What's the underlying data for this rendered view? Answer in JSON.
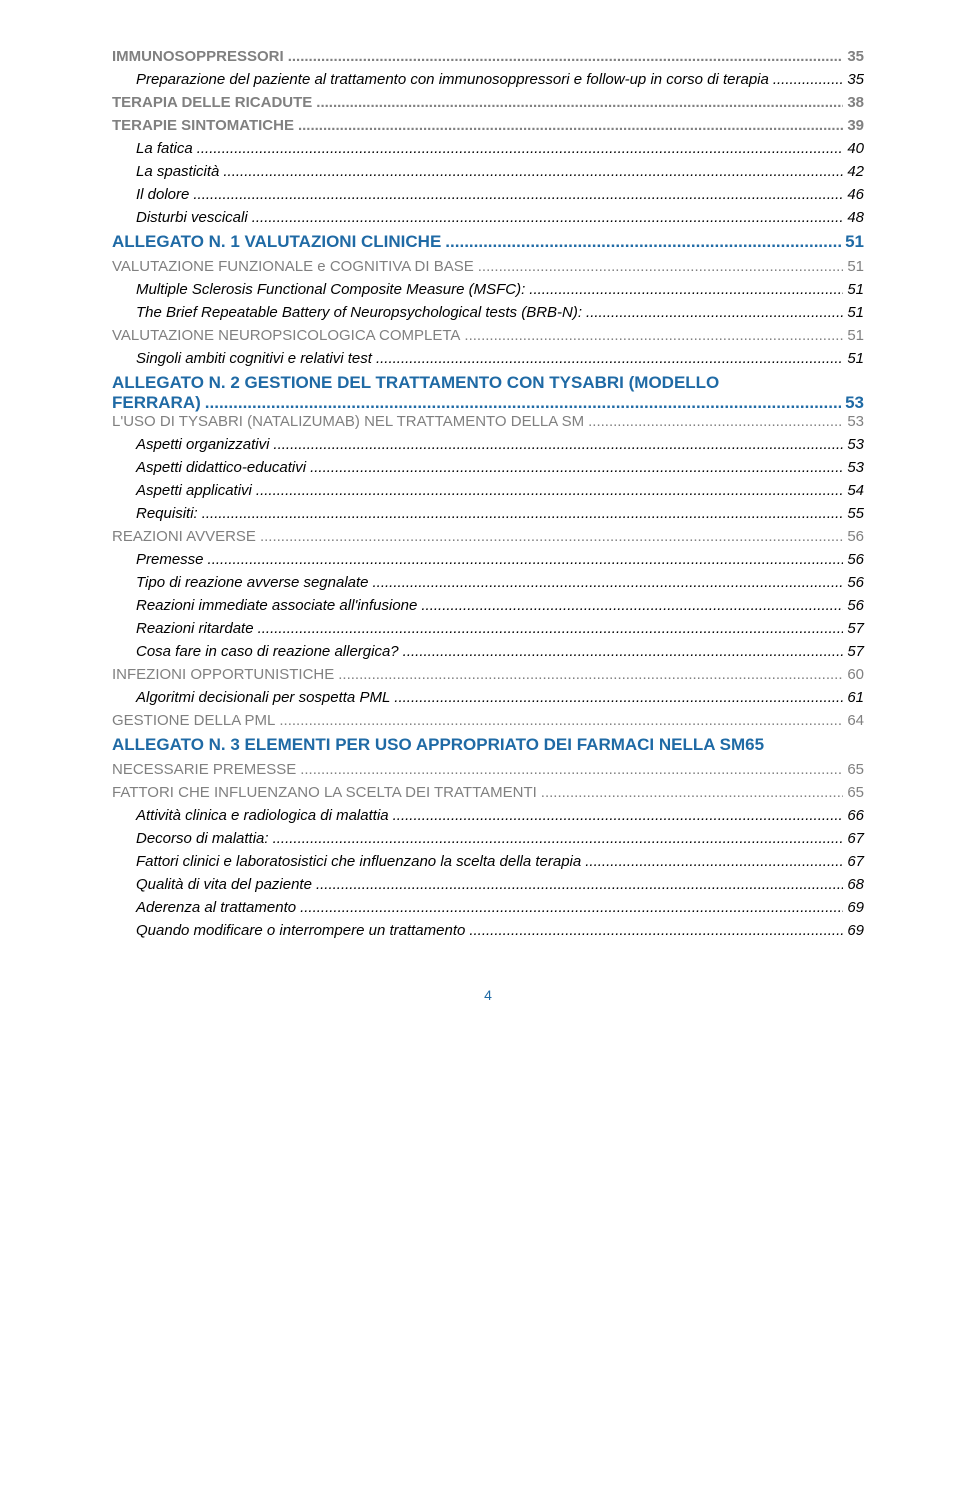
{
  "entries": [
    {
      "cls": "lvl-section-grey",
      "label": "IMMUNOSOPPRESSORI",
      "page": "35"
    },
    {
      "cls": "lvl-item-italic",
      "label": "Preparazione del paziente al trattamento con immunosoppressori e follow-up in corso di terapia",
      "page": "35"
    },
    {
      "cls": "lvl-section-grey",
      "label": "TERAPIA DELLE RICADUTE",
      "page": "38"
    },
    {
      "cls": "lvl-section-grey",
      "label": "TERAPIE SINTOMATICHE",
      "page": "39"
    },
    {
      "cls": "lvl-item-italic",
      "label": "La fatica",
      "page": "40"
    },
    {
      "cls": "lvl-item-italic",
      "label": "La spasticità",
      "page": "42"
    },
    {
      "cls": "lvl-item-italic",
      "label": "Il dolore",
      "page": "46"
    },
    {
      "cls": "lvl-item-italic",
      "label": "Disturbi vescicali",
      "page": "48"
    },
    {
      "cls": "lvl-heading-blue",
      "label": "ALLEGATO N. 1 VALUTAZIONI CLINICHE",
      "page": "51"
    },
    {
      "cls": "lvl-sub-grey",
      "label": "VALUTAZIONE FUNZIONALE e COGNITIVA DI BASE",
      "page": "51"
    },
    {
      "cls": "lvl-item-italic",
      "label": "Multiple Sclerosis Functional Composite Measure (MSFC):",
      "page": "51"
    },
    {
      "cls": "lvl-item-italic",
      "label": "The Brief Repeatable Battery of Neuropsychological tests (BRB-N):",
      "page": "51"
    },
    {
      "cls": "lvl-sub-grey",
      "label": "VALUTAZIONE NEUROPSICOLOGICA COMPLETA",
      "page": "51"
    },
    {
      "cls": "lvl-item-italic",
      "label": "Singoli ambiti cognitivi e relativi test",
      "page": "51"
    },
    {
      "cls": "lvl-heading-blue-wrap",
      "two_line": true,
      "label_line1": "ALLEGATO N. 2 GESTIONE DEL TRATTAMENTO CON TYSABRI (MODELLO",
      "label_line2": "FERRARA)",
      "page": "53"
    },
    {
      "cls": "lvl-sub-grey",
      "label": "L'USO DI TYSABRI (NATALIZUMAB) NEL TRATTAMENTO DELLA SM",
      "page": "53"
    },
    {
      "cls": "lvl-item-italic",
      "label": "Aspetti organizzativi",
      "page": "53"
    },
    {
      "cls": "lvl-item-italic",
      "label": "Aspetti didattico-educativi",
      "page": "53"
    },
    {
      "cls": "lvl-item-italic",
      "label": "Aspetti applicativi",
      "page": "54"
    },
    {
      "cls": "lvl-item-italic",
      "label": "Requisiti:",
      "page": "55"
    },
    {
      "cls": "lvl-sub-grey",
      "label": "REAZIONI AVVERSE",
      "page": "56"
    },
    {
      "cls": "lvl-item-italic",
      "label": "Premesse",
      "page": "56"
    },
    {
      "cls": "lvl-item-italic",
      "label": "Tipo di reazione avverse segnalate",
      "page": "56"
    },
    {
      "cls": "lvl-item-italic",
      "label": "Reazioni immediate associate all'infusione",
      "page": "56"
    },
    {
      "cls": "lvl-item-italic",
      "label": "Reazioni ritardate",
      "page": "57"
    },
    {
      "cls": "lvl-item-italic",
      "label": "Cosa fare in caso di reazione allergica?",
      "page": "57"
    },
    {
      "cls": "lvl-sub-grey",
      "label": "INFEZIONI OPPORTUNISTICHE",
      "page": "60"
    },
    {
      "cls": "lvl-item-italic",
      "label": "Algoritmi decisionali per sospetta PML",
      "page": "61"
    },
    {
      "cls": "lvl-sub-grey",
      "label": "GESTIONE DELLA PML",
      "page": "64"
    },
    {
      "cls": "lvl-heading-blue",
      "label": "ALLEGATO N. 3 ELEMENTI PER USO APPROPRIATO DEI FARMACI NELLA SM",
      "page": "65",
      "nodots": true
    },
    {
      "cls": "lvl-sub-grey",
      "label": "NECESSARIE PREMESSE",
      "page": "65"
    },
    {
      "cls": "lvl-sub-grey",
      "label": "FATTORI CHE INFLUENZANO LA SCELTA DEI TRATTAMENTI",
      "page": "65"
    },
    {
      "cls": "lvl-item-italic",
      "label": "Attività clinica e radiologica di malattia",
      "page": "66"
    },
    {
      "cls": "lvl-item-italic",
      "label": "Decorso di malattia:",
      "page": "67"
    },
    {
      "cls": "lvl-item-italic",
      "label": "Fattori clinici e laboratosistici che influenzano la scelta della terapia",
      "page": "67"
    },
    {
      "cls": "lvl-item-italic",
      "label": "Qualità di vita del paziente",
      "page": "68"
    },
    {
      "cls": "lvl-item-italic",
      "label": "Aderenza al trattamento",
      "page": "69"
    },
    {
      "cls": "lvl-item-italic",
      "label": "Quando modificare o interrompere un trattamento",
      "page": "69"
    }
  ],
  "page_number": "4",
  "dot_fill": "......................................................................................................................................................................................................",
  "colors": {
    "blue": "#1f6aa5",
    "grey": "#808080",
    "black": "#000000",
    "background": "#ffffff"
  }
}
